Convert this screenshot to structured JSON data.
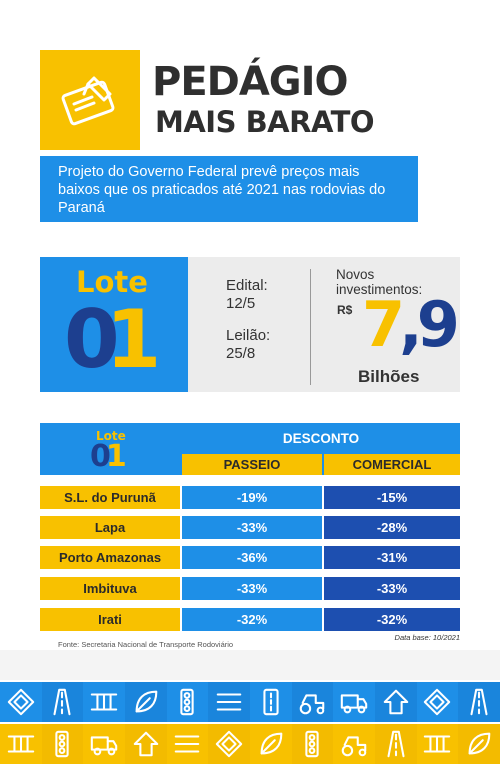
{
  "header": {
    "title_line1": "PEDÁGIO",
    "title_line2": "MAIS BARATO",
    "logo_icon": "pencil-document-icon"
  },
  "subtitle": "Projeto do Governo Federal prevê preços mais baixos que os praticados até 2021 nas rodovias do Paraná",
  "lote": {
    "word": "Lote",
    "digit_a": "0",
    "digit_b": "1",
    "edital_label": "Edital:",
    "edital_value": "12/5",
    "leilao_label": "Leilão:",
    "leilao_value": "25/8",
    "investimentos_label": "Novos investimentos:",
    "currency": "R$",
    "value_a": "7",
    "value_b": ",9",
    "value_unit": "Bilhões"
  },
  "table": {
    "lote_word": "Lote",
    "lote_digit_a": "0",
    "lote_digit_b": "1",
    "desconto": "DESCONTO",
    "col_passeio": "PASSEIO",
    "col_comercial": "COMERCIAL",
    "rows": [
      {
        "name": "S.L. do Purunã",
        "passeio": "-19%",
        "comercial": "-15%"
      },
      {
        "name": "Lapa",
        "passeio": "-33%",
        "comercial": "-28%"
      },
      {
        "name": "Porto Amazonas",
        "passeio": "-36%",
        "comercial": "-31%"
      },
      {
        "name": "Imbituva",
        "passeio": "-33%",
        "comercial": "-33%"
      },
      {
        "name": "Irati",
        "passeio": "-32%",
        "comercial": "-32%"
      }
    ]
  },
  "footer": {
    "source": "Fonte: Secretaria Nacional de Transporte Rodoviário",
    "date_base": "Data base: 10/2021"
  },
  "colors": {
    "yellow": "#f8c100",
    "blue": "#1e8fe7",
    "dark_blue": "#1d4fb0",
    "navy": "#1d3f8f"
  },
  "band_icons": {
    "top": [
      "diamond-sign-icon",
      "road-icon",
      "bridge-icon",
      "leaf-icon",
      "traffic-light-icon",
      "lanes-icon",
      "road-markings-icon",
      "tractor-icon",
      "truck-icon",
      "arrow-up-icon",
      "diamond-sign-icon",
      "road-icon"
    ],
    "bottom": [
      "bridge-icon",
      "traffic-light-icon",
      "truck-icon",
      "arrow-up-icon",
      "lanes-icon",
      "diamond-sign-icon",
      "leaf-icon",
      "traffic-light-icon",
      "tractor-icon",
      "road-icon",
      "bridge-icon",
      "leaf-icon"
    ]
  }
}
